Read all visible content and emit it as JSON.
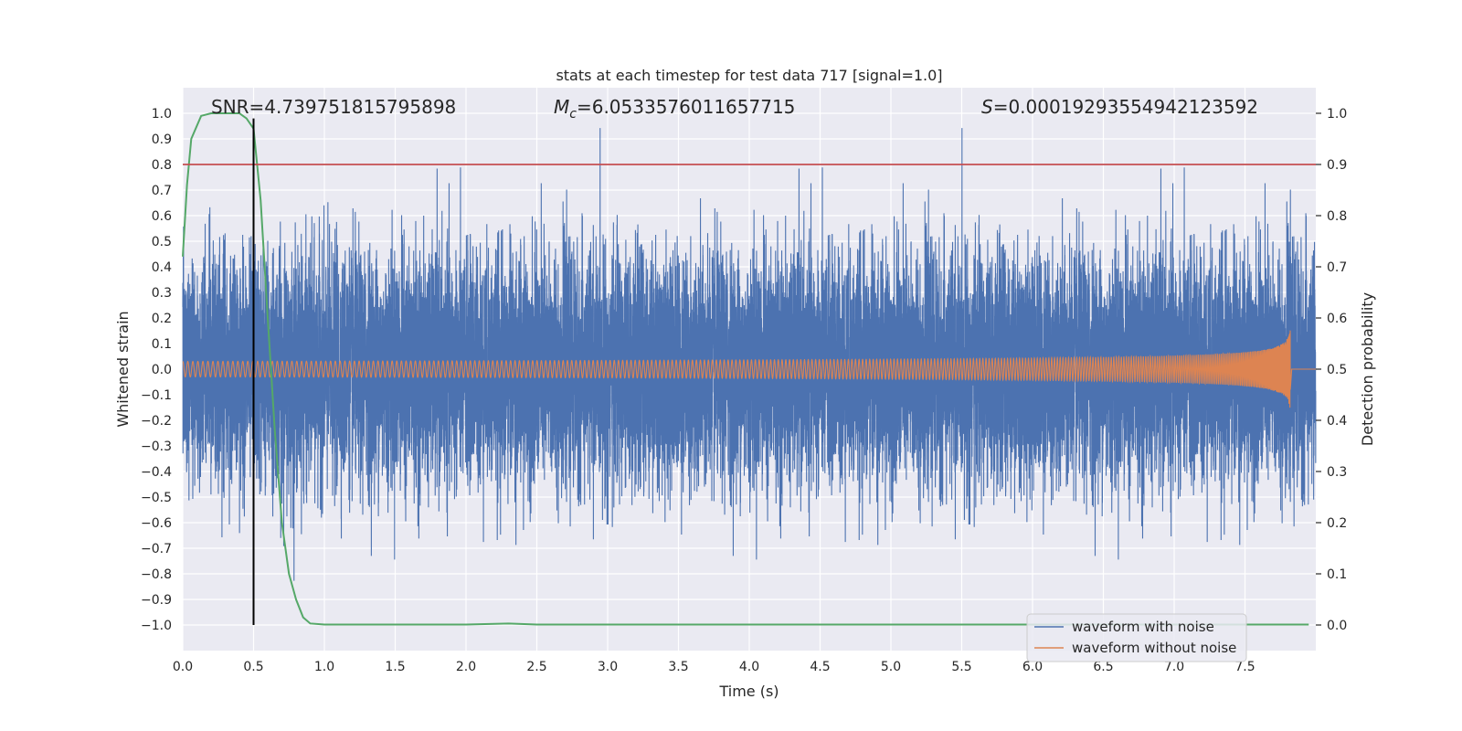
{
  "chart_data": {
    "type": "line",
    "title": "stats at each timestep for test data 717 [signal=1.0]",
    "xlabel": "Time (s)",
    "ylabel": "Whitened strain",
    "y2label": "Detection probability",
    "xlim": [
      0.0,
      8.0
    ],
    "ylim": [
      -1.1,
      1.1
    ],
    "y2lim": [
      -0.05,
      1.05
    ],
    "xticks": [
      "0.0",
      "0.5",
      "1.0",
      "1.5",
      "2.0",
      "2.5",
      "3.0",
      "3.5",
      "4.0",
      "4.5",
      "5.0",
      "5.5",
      "6.0",
      "6.5",
      "7.0",
      "7.5"
    ],
    "yticks": [
      "1.0",
      "0.9",
      "0.8",
      "0.7",
      "0.6",
      "0.5",
      "0.4",
      "0.3",
      "0.2",
      "0.1",
      "0.0",
      "−0.1",
      "−0.2",
      "−0.3",
      "−0.4",
      "−0.5",
      "−0.6",
      "−0.7",
      "−0.8",
      "−0.9",
      "−1.0"
    ],
    "y2ticks": [
      "1.0",
      "0.9",
      "0.8",
      "0.7",
      "0.6",
      "0.5",
      "0.4",
      "0.3",
      "0.2",
      "0.1",
      "0.0"
    ],
    "grid": true,
    "legend_placement": "lower-right",
    "annotations": {
      "snr": "SNR=4.739751815795898",
      "mc_symbol": "M",
      "mc_sub": "c",
      "mc_value": "=6.0533576011657715",
      "s_symbol": "S",
      "s_value": "=0.00019293554942123592"
    },
    "series": [
      {
        "name": "waveform with noise",
        "color": "#4c72b0",
        "kind": "noisy-strain",
        "sample_rate_hz": 2048,
        "duration_s": 8.0,
        "rms": 0.22,
        "clip": [
          -1.0,
          1.0
        ]
      },
      {
        "name": "waveform without noise",
        "color": "#dd8452",
        "kind": "chirp",
        "coalescence_time_s": 7.82,
        "final_amplitude": 0.16
      },
      {
        "color": "#55a868",
        "axis": "right",
        "x": [
          0.0,
          0.03,
          0.06,
          0.13,
          0.2,
          0.3,
          0.4,
          0.45,
          0.5,
          0.55,
          0.6,
          0.65,
          0.7,
          0.75,
          0.8,
          0.85,
          0.9,
          1.0,
          1.5,
          2.0,
          2.3,
          2.5,
          3.0,
          4.0,
          5.0,
          6.0,
          7.0,
          7.95
        ],
        "values": [
          0.72,
          0.86,
          0.95,
          0.995,
          1.0,
          1.0,
          1.0,
          0.99,
          0.97,
          0.83,
          0.6,
          0.38,
          0.2,
          0.1,
          0.05,
          0.015,
          0.003,
          0.001,
          0.001,
          0.001,
          0.003,
          0.001,
          0.001,
          0.001,
          0.001,
          0.001,
          0.001,
          0.001
        ]
      },
      {
        "color": "#c44e52",
        "kind": "hline",
        "axis": "right",
        "value": 0.9
      },
      {
        "color": "#000000",
        "kind": "vline",
        "x": 0.5,
        "ymin": -1.0,
        "ymax": 0.98
      }
    ]
  }
}
